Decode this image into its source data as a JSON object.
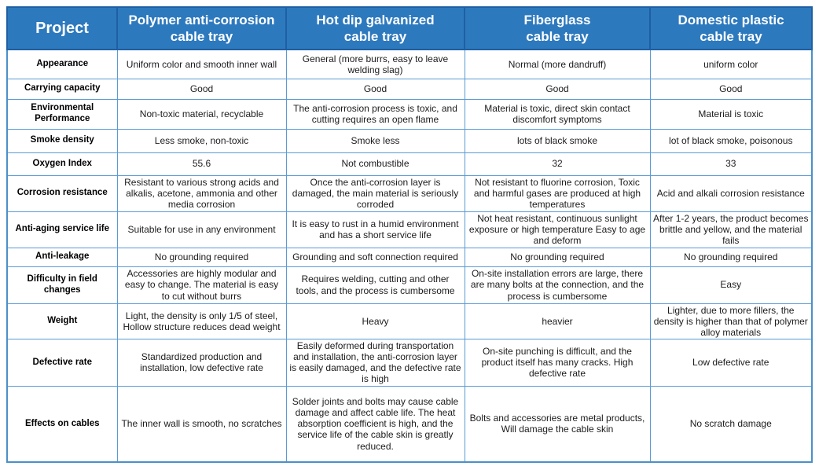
{
  "colors": {
    "header_bg": "#2d79be",
    "header_border": "#1f5fa3",
    "header_text": "#ffffff",
    "body_border": "#5b9bd5",
    "outer_border": "#4a90c8",
    "body_text": "#1c1c1c",
    "cell_bg": "#ffffff"
  },
  "table": {
    "header": {
      "project_label": "Project",
      "columns": [
        [
          "Polymer anti-corrosion",
          "cable tray"
        ],
        [
          "Hot dip galvanized",
          "cable tray"
        ],
        [
          "Fiberglass",
          "cable tray"
        ],
        [
          "Domestic plastic",
          "cable tray"
        ]
      ]
    },
    "rows": [
      {
        "label": "Appearance",
        "cells": [
          "Uniform color and smooth inner wall",
          "General (more burrs, easy to leave welding slag)",
          "Normal (more dandruff)",
          "uniform color"
        ]
      },
      {
        "label": "Carrying capacity",
        "cells": [
          "Good",
          "Good",
          "Good",
          "Good"
        ]
      },
      {
        "label": "Environmental Performance",
        "cells": [
          "Non-toxic material, recyclable",
          "The anti-corrosion process is toxic, and cutting requires an open flame",
          "Material is toxic, direct skin contact discomfort symptoms",
          "Material is toxic"
        ]
      },
      {
        "label": "Smoke density",
        "cells": [
          "Less smoke, non-toxic",
          "Smoke less",
          "lots of black smoke",
          "lot of black smoke, poisonous"
        ]
      },
      {
        "label": "Oxygen Index",
        "cells": [
          "55.6",
          "Not combustible",
          "32",
          "33"
        ]
      },
      {
        "label": "Corrosion resistance",
        "cells": [
          "Resistant to various strong acids and alkalis, acetone, ammonia and other media corrosion",
          "Once the anti-corrosion layer is damaged, the main material is seriously corroded",
          "Not resistant to fluorine corrosion, Toxic and harmful gases are produced at high temperatures",
          "Acid and alkali corrosion resistance"
        ]
      },
      {
        "label": "Anti-aging service life",
        "cells": [
          "Suitable for use in any environment",
          "It is easy to rust in a humid environment and has a short service life",
          "Not heat resistant, continuous sunlight exposure or high temperature Easy to age and deform",
          "After 1-2 years, the product becomes brittle and yellow, and the material fails"
        ]
      },
      {
        "label": "Anti-leakage",
        "cells": [
          "No grounding required",
          "Grounding and soft connection required",
          "No grounding required",
          "No grounding required"
        ]
      },
      {
        "label": "Difficulty in field changes",
        "cells": [
          "Accessories are highly modular and easy to change. The material is easy to cut without burrs",
          "Requires welding, cutting and other tools, and the process is cumbersome",
          "On-site installation errors are large, there are many bolts at the connection, and the process is cumbersome",
          "Easy"
        ]
      },
      {
        "label": "Weight",
        "cells": [
          "Light, the density is only 1/5 of steel, Hollow structure reduces dead weight",
          "Heavy",
          "heavier",
          "Lighter, due to more fillers, the density is higher than that of polymer alloy materials"
        ]
      },
      {
        "label": "Defective rate",
        "cells": [
          "Standardized production and installation, low defective rate",
          "Easily deformed during transportation and installation, the anti-corrosion layer is easily damaged, and the defective rate is high",
          "On-site punching is difficult, and the product itself has many cracks. High defective rate",
          "Low defective rate"
        ]
      },
      {
        "label": "Effects on cables",
        "cells": [
          "The inner wall is smooth, no scratches",
          "Solder joints and bolts may cause cable damage and affect cable life. The heat absorption coefficient is high, and the service life of the cable skin is greatly reduced.",
          "Bolts and accessories are metal products, Will damage the cable skin",
          "No scratch damage"
        ]
      }
    ]
  }
}
